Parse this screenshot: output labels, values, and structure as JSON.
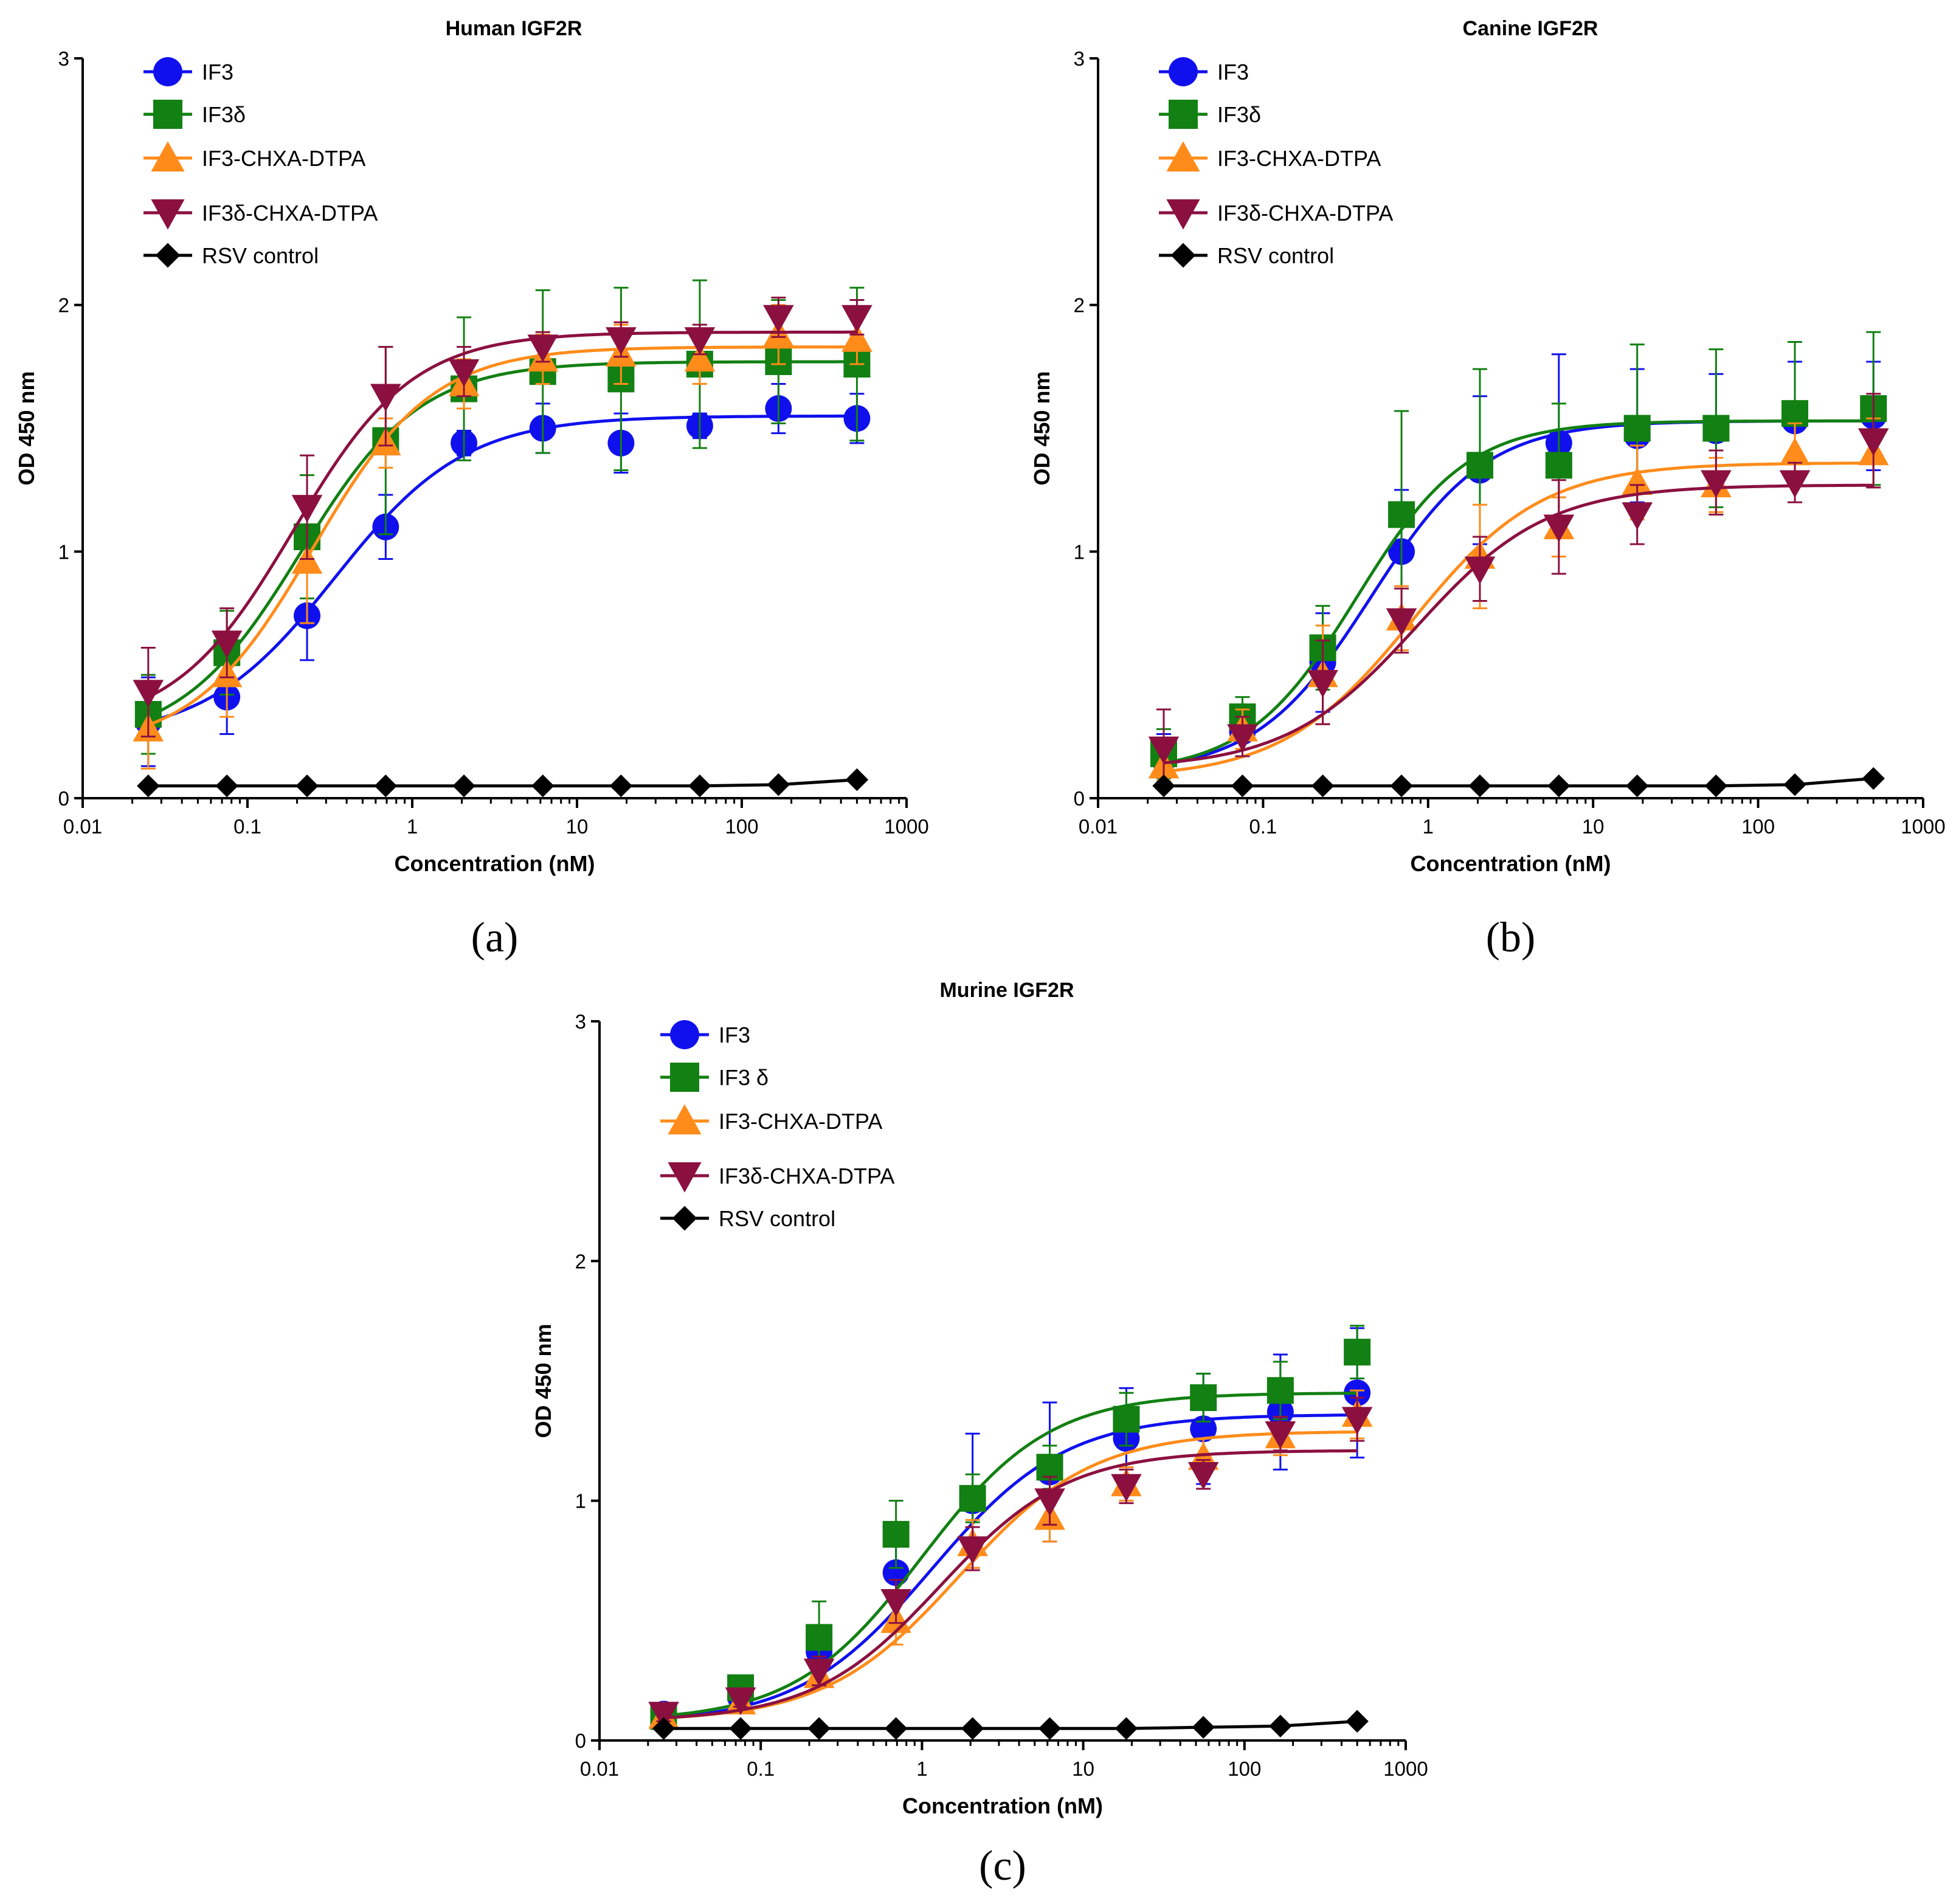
{
  "chart_data": [
    {
      "type": "scatter",
      "panel_label": "(a)",
      "title": "Human IGF2R",
      "xlabel": "Concentration (nM)",
      "ylabel": "OD 450 nm",
      "xscale": "log",
      "xlim": [
        0.01,
        1000
      ],
      "ylim": [
        0,
        3
      ],
      "xticks": [
        "0.01",
        "0.1",
        "1",
        "10",
        "100",
        "1000"
      ],
      "yticks": [
        "0",
        "1",
        "2",
        "3"
      ],
      "legend_position": "top-left",
      "x": [
        0.025,
        0.075,
        0.23,
        0.69,
        2.06,
        6.2,
        18.5,
        55.6,
        167,
        500
      ],
      "series": [
        {
          "name": "IF3",
          "color": "#1010ee",
          "marker": "circle",
          "values": [
            0.31,
            0.41,
            0.74,
            1.1,
            1.44,
            1.5,
            1.44,
            1.51,
            1.58,
            1.54
          ],
          "errors": [
            0.18,
            0.15,
            0.18,
            0.13,
            0.05,
            0.1,
            0.12,
            0.05,
            0.1,
            0.1
          ],
          "fit": {
            "bottom": 0.24,
            "top": 1.55,
            "ec50": 0.34,
            "hill": 1.1
          }
        },
        {
          "name": "IF3δ",
          "color": "#128012",
          "marker": "square",
          "values": [
            0.34,
            0.59,
            1.06,
            1.45,
            1.66,
            1.73,
            1.7,
            1.76,
            1.77,
            1.76
          ],
          "errors": [
            0.16,
            0.17,
            0.25,
            0.38,
            0.29,
            0.33,
            0.37,
            0.34,
            0.25,
            0.31
          ],
          "fit": {
            "bottom": 0.22,
            "top": 1.77,
            "ec50": 0.21,
            "hill": 1.2
          }
        },
        {
          "name": "IF3-CHXA-DTPA",
          "color": "#ff8c1a",
          "marker": "triangle-up",
          "values": [
            0.28,
            0.5,
            0.96,
            1.44,
            1.68,
            1.78,
            1.8,
            1.78,
            1.88,
            1.86
          ],
          "errors": [
            0.16,
            0.17,
            0.25,
            0.1,
            0.1,
            0.1,
            0.12,
            0.1,
            0.12,
            0.1
          ],
          "fit": {
            "bottom": 0.2,
            "top": 1.83,
            "ec50": 0.25,
            "hill": 1.2
          }
        },
        {
          "name": "IF3δ-CHXA-DTPA",
          "color": "#8b1040",
          "marker": "triangle-down",
          "values": [
            0.43,
            0.63,
            1.18,
            1.63,
            1.73,
            1.83,
            1.86,
            1.86,
            1.95,
            1.95
          ],
          "errors": [
            0.18,
            0.14,
            0.21,
            0.2,
            0.1,
            0.06,
            0.07,
            0.06,
            0.08,
            0.07
          ],
          "fit": {
            "bottom": 0.28,
            "top": 1.89,
            "ec50": 0.19,
            "hill": 1.2
          }
        },
        {
          "name": "RSV control",
          "color": "#000000",
          "marker": "diamond",
          "values": [
            0.05,
            0.05,
            0.05,
            0.05,
            0.05,
            0.05,
            0.05,
            0.05,
            0.055,
            0.075
          ],
          "errors": [
            0,
            0,
            0,
            0,
            0,
            0,
            0,
            0,
            0,
            0
          ],
          "fit": null
        }
      ]
    },
    {
      "type": "scatter",
      "panel_label": "(b)",
      "title": "Canine IGF2R",
      "xlabel": "Concentration (nM)",
      "ylabel": "OD 450 nm",
      "xscale": "log",
      "xlim": [
        0.01,
        1000
      ],
      "ylim": [
        0,
        3
      ],
      "xticks": [
        "0.01",
        "0.1",
        "1",
        "10",
        "100",
        "1000"
      ],
      "yticks": [
        "0",
        "1",
        "2",
        "3"
      ],
      "legend_position": "top-left",
      "x": [
        0.025,
        0.075,
        0.23,
        0.69,
        2.06,
        6.2,
        18.5,
        55.6,
        167,
        500
      ],
      "series": [
        {
          "name": "IF3",
          "color": "#1010ee",
          "marker": "circle",
          "values": [
            0.16,
            0.27,
            0.55,
            1.0,
            1.33,
            1.44,
            1.47,
            1.49,
            1.53,
            1.55
          ],
          "errors": [
            0.1,
            0.1,
            0.2,
            0.25,
            0.3,
            0.36,
            0.27,
            0.23,
            0.24,
            0.22
          ],
          "fit": {
            "bottom": 0.1,
            "top": 1.53,
            "ec50": 0.45,
            "hill": 1.25
          }
        },
        {
          "name": "IF3δ",
          "color": "#128012",
          "marker": "square",
          "values": [
            0.18,
            0.33,
            0.61,
            1.15,
            1.35,
            1.35,
            1.5,
            1.5,
            1.56,
            1.58
          ],
          "errors": [
            0.1,
            0.08,
            0.17,
            0.42,
            0.39,
            0.25,
            0.34,
            0.32,
            0.29,
            0.31
          ],
          "fit": {
            "bottom": 0.1,
            "top": 1.53,
            "ec50": 0.37,
            "hill": 1.3
          }
        },
        {
          "name": "IF3-CHXA-DTPA",
          "color": "#ff8c1a",
          "marker": "triangle-up",
          "values": [
            0.13,
            0.28,
            0.5,
            0.73,
            0.98,
            1.1,
            1.28,
            1.27,
            1.4,
            1.4
          ],
          "errors": [
            0.06,
            0.08,
            0.2,
            0.13,
            0.21,
            0.12,
            0.15,
            0.11,
            0.12,
            0.14
          ],
          "fit": {
            "bottom": 0.08,
            "top": 1.36,
            "ec50": 0.8,
            "hill": 1.1
          }
        },
        {
          "name": "IF3δ-CHXA-DTPA",
          "color": "#8b1040",
          "marker": "triangle-down",
          "values": [
            0.2,
            0.25,
            0.47,
            0.72,
            0.93,
            1.1,
            1.15,
            1.28,
            1.28,
            1.45
          ],
          "errors": [
            0.16,
            0.08,
            0.17,
            0.13,
            0.13,
            0.19,
            0.12,
            0.13,
            0.08,
            0.19
          ],
          "fit": {
            "bottom": 0.12,
            "top": 1.27,
            "ec50": 0.85,
            "hill": 1.1
          }
        },
        {
          "name": "RSV control",
          "color": "#000000",
          "marker": "diamond",
          "values": [
            0.05,
            0.05,
            0.05,
            0.05,
            0.05,
            0.05,
            0.05,
            0.05,
            0.055,
            0.08
          ],
          "errors": [
            0,
            0,
            0,
            0,
            0,
            0,
            0,
            0,
            0,
            0
          ],
          "fit": null
        }
      ]
    },
    {
      "type": "scatter",
      "panel_label": "(c)",
      "title": "Murine IGF2R",
      "xlabel": "Concentration (nM)",
      "ylabel": "OD 450 nm",
      "xscale": "log",
      "xlim": [
        0.01,
        1000
      ],
      "ylim": [
        0,
        3
      ],
      "xticks": [
        "0.01",
        "0.1",
        "1",
        "10",
        "100",
        "1000"
      ],
      "yticks": [
        "0",
        "1",
        "2",
        "3"
      ],
      "legend_position": "top-left",
      "x": [
        0.025,
        0.075,
        0.23,
        0.69,
        2.06,
        6.2,
        18.5,
        55.6,
        167,
        500
      ],
      "series": [
        {
          "name": "IF3",
          "color": "#1010ee",
          "marker": "circle",
          "values": [
            0.11,
            0.18,
            0.37,
            0.7,
            1.0,
            1.12,
            1.26,
            1.3,
            1.37,
            1.45
          ],
          "errors": [
            0.03,
            0.03,
            0.1,
            0.21,
            0.28,
            0.29,
            0.21,
            0.23,
            0.24,
            0.27
          ],
          "fit": {
            "bottom": 0.07,
            "top": 1.36,
            "ec50": 1.15,
            "hill": 1.05
          }
        },
        {
          "name": "IF3 δ",
          "color": "#128012",
          "marker": "square",
          "values": [
            0.1,
            0.22,
            0.43,
            0.86,
            1.01,
            1.14,
            1.34,
            1.43,
            1.46,
            1.62
          ],
          "errors": [
            0.03,
            0.03,
            0.15,
            0.14,
            0.1,
            0.09,
            0.11,
            0.1,
            0.12,
            0.11
          ],
          "fit": {
            "bottom": 0.08,
            "top": 1.45,
            "ec50": 1.0,
            "hill": 1.1
          }
        },
        {
          "name": "IF3-CHXA-DTPA",
          "color": "#ff8c1a",
          "marker": "triangle-up",
          "values": [
            0.1,
            0.16,
            0.27,
            0.5,
            0.82,
            0.93,
            1.07,
            1.18,
            1.27,
            1.36
          ],
          "errors": [
            0.03,
            0.03,
            0.05,
            0.1,
            0.1,
            0.1,
            0.07,
            0.08,
            0.08,
            0.1
          ],
          "fit": {
            "bottom": 0.08,
            "top": 1.29,
            "ec50": 1.7,
            "hill": 1.05
          }
        },
        {
          "name": "IF3δ-CHXA-DTPA",
          "color": "#8b1040",
          "marker": "triangle-down",
          "values": [
            0.11,
            0.17,
            0.29,
            0.58,
            0.8,
            1.0,
            1.06,
            1.11,
            1.28,
            1.34
          ],
          "errors": [
            0.03,
            0.03,
            0.06,
            0.09,
            0.09,
            0.1,
            0.07,
            0.06,
            0.07,
            0.09
          ],
          "fit": {
            "bottom": 0.08,
            "top": 1.21,
            "ec50": 1.3,
            "hill": 1.1
          }
        },
        {
          "name": "RSV control",
          "color": "#000000",
          "marker": "diamond",
          "values": [
            0.05,
            0.05,
            0.05,
            0.05,
            0.05,
            0.05,
            0.05,
            0.055,
            0.06,
            0.08
          ],
          "errors": [
            0,
            0,
            0,
            0,
            0,
            0,
            0,
            0,
            0,
            0
          ],
          "fit": null
        }
      ]
    }
  ]
}
